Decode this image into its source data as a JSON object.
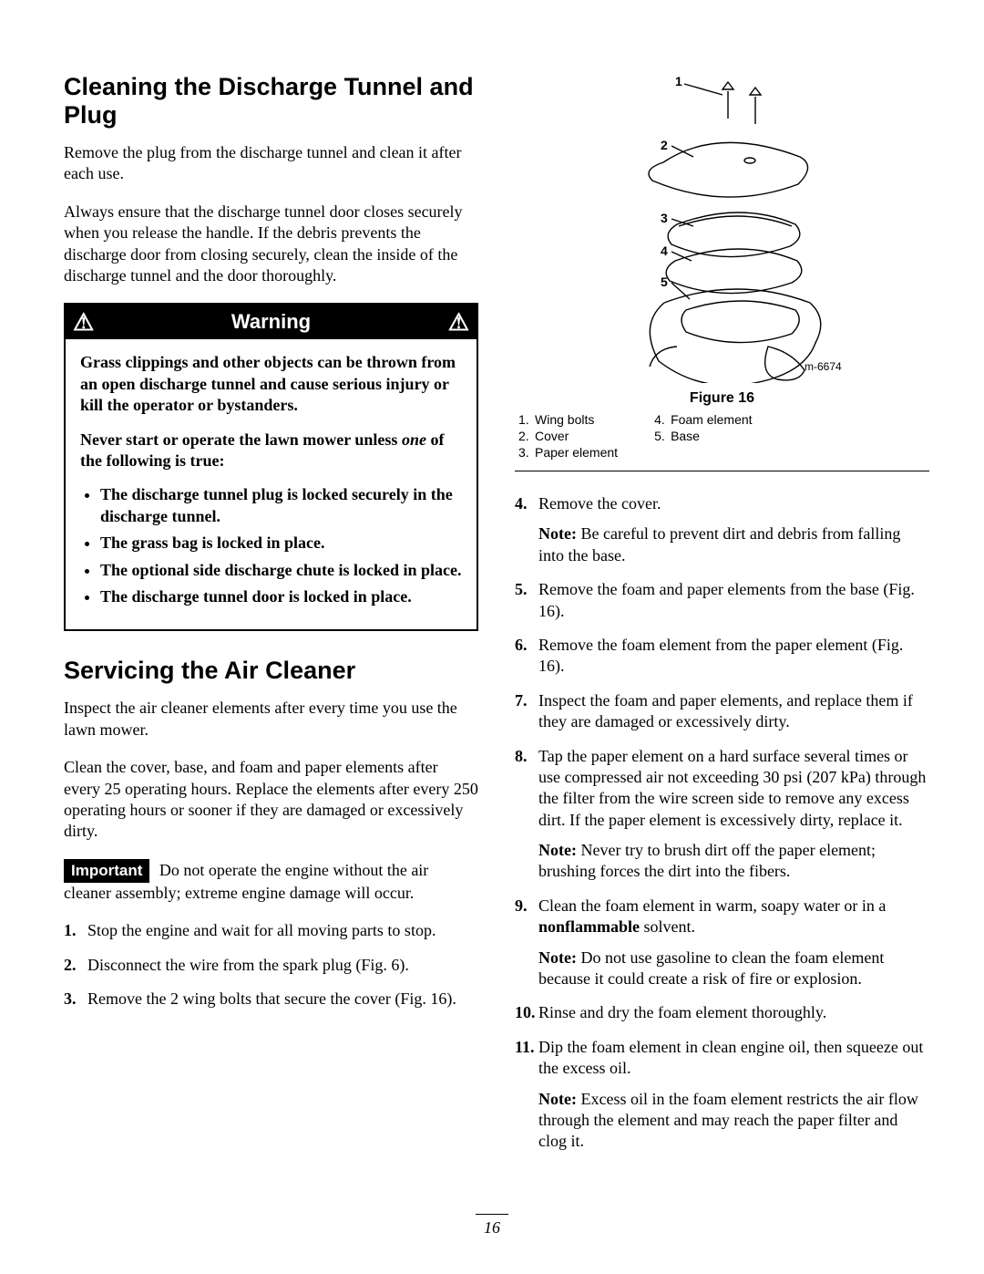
{
  "page_number": "16",
  "left": {
    "heading1": "Cleaning the Discharge Tunnel and Plug",
    "p1": "Remove the plug from the discharge tunnel and clean it after each use.",
    "p2": "Always ensure that the discharge tunnel door closes securely when you release the handle. If the debris prevents the discharge door from closing securely, clean the inside of the discharge tunnel and the door thoroughly.",
    "warning": {
      "title": "Warning",
      "p1": "Grass clippings and other objects can be thrown from an open discharge tunnel and cause serious injury or kill the operator or bystanders.",
      "p2_pre": "Never start or operate the lawn mower unless ",
      "p2_em": "one",
      "p2_post": " of the following is true:",
      "bullets": [
        "The discharge tunnel plug is locked securely in the discharge tunnel.",
        "The grass bag is locked in place.",
        "The optional side discharge chute is locked in place.",
        "The discharge tunnel door is locked in place."
      ]
    },
    "heading2": "Servicing the Air Cleaner",
    "p3": "Inspect the air cleaner elements after every time you use the lawn mower.",
    "p4": "Clean the cover, base, and foam and paper elements after every 25 operating hours. Replace the elements after every 250 operating hours or sooner if they are damaged or excessively dirty.",
    "important_label": "Important",
    "important_text": " Do not operate the engine without the air cleaner assembly; extreme engine damage will occur.",
    "steps": [
      "Stop the engine and wait for all moving parts to stop.",
      "Disconnect the wire from the spark plug (Fig. 6).",
      "Remove the 2 wing bolts that secure the cover (Fig. 16)."
    ]
  },
  "figure": {
    "caption": "Figure 16",
    "ref": "m-6674",
    "legend_left": [
      {
        "n": "1.",
        "t": "Wing bolts"
      },
      {
        "n": "2.",
        "t": "Cover"
      },
      {
        "n": "3.",
        "t": "Paper element"
      }
    ],
    "legend_right": [
      {
        "n": "4.",
        "t": "Foam element"
      },
      {
        "n": "5.",
        "t": "Base"
      }
    ],
    "labels": {
      "n1": "1",
      "n2": "2",
      "n3": "3",
      "n4": "4",
      "n5": "5"
    }
  },
  "right_steps": [
    {
      "n": "4.",
      "text": "Remove the cover.",
      "note_strong": "Note:",
      "note": " Be careful to prevent dirt and debris from falling into the base."
    },
    {
      "n": "5.",
      "text": "Remove the foam and paper elements from the base (Fig. 16)."
    },
    {
      "n": "6.",
      "text": "Remove the foam element from the paper element (Fig. 16)."
    },
    {
      "n": "7.",
      "text": "Inspect the foam and paper elements, and replace them if they are damaged or excessively dirty."
    },
    {
      "n": "8.",
      "text": "Tap the paper element on a hard surface several times or use compressed air not exceeding 30 psi (207 kPa) through the filter from the wire screen side to remove any excess dirt. If the paper element is excessively dirty, replace it.",
      "note_strong": "Note:",
      "note": " Never try to brush dirt off the paper element; brushing forces the dirt into the fibers."
    },
    {
      "n": "9.",
      "pre": "Clean the foam element in warm, soapy water or in a ",
      "strong": "nonflammable",
      "post": " solvent.",
      "note_strong": "Note:",
      "note": " Do not use gasoline to clean the foam element because it could create a risk of fire or explosion."
    },
    {
      "n": "10.",
      "text": "Rinse and dry the foam element thoroughly."
    },
    {
      "n": "11.",
      "text": "Dip the foam element in clean engine oil, then squeeze out the excess oil.",
      "note_strong": "Note:",
      "note": " Excess oil in the foam element restricts the air flow through the element and may reach the paper filter and clog it."
    }
  ]
}
